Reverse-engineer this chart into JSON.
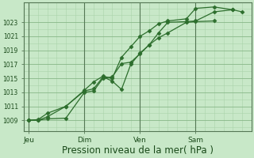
{
  "background_color": "#c8e8c8",
  "plot_bg_color": "#c8e8c8",
  "grid_major_color": "#88b888",
  "grid_minor_color": "#aad4aa",
  "line_color": "#2d6e2d",
  "xlabel": "Pression niveau de la mer( hPa )",
  "xlabel_fontsize": 8.5,
  "ylabel_labels": [
    1009,
    1011,
    1013,
    1015,
    1017,
    1019,
    1021,
    1023
  ],
  "ylim": [
    1007.5,
    1025.8
  ],
  "xtick_labels": [
    "Jeu",
    "Dim",
    "Ven",
    "Sam"
  ],
  "xtick_positions": [
    0,
    24,
    48,
    72
  ],
  "xlim": [
    -2,
    96
  ],
  "vlines": [
    0,
    24,
    48,
    72
  ],
  "series": [
    {
      "x": [
        0,
        4,
        8,
        16,
        24,
        28,
        32,
        36,
        40,
        44,
        48,
        52,
        56,
        60,
        68,
        72,
        80
      ],
      "y": [
        1009.0,
        1009.0,
        1009.2,
        1009.3,
        1013.0,
        1013.2,
        1015.0,
        1015.2,
        1017.1,
        1017.3,
        1018.5,
        1019.8,
        1020.8,
        1021.5,
        1023.0,
        1023.1,
        1023.2
      ]
    },
    {
      "x": [
        0,
        4,
        8,
        16,
        24,
        28,
        32,
        36,
        40,
        44,
        48,
        52,
        56,
        60,
        68,
        72,
        80,
        88
      ],
      "y": [
        1009.0,
        1009.1,
        1010.0,
        1011.0,
        1013.2,
        1013.5,
        1015.2,
        1014.6,
        1013.4,
        1017.0,
        1018.6,
        1019.8,
        1021.5,
        1023.0,
        1023.1,
        1023.2,
        1024.5,
        1024.8
      ]
    },
    {
      "x": [
        0,
        4,
        8,
        16,
        24,
        28,
        32,
        36,
        40,
        44,
        48,
        52,
        56,
        60,
        68,
        72,
        80,
        88,
        92
      ],
      "y": [
        1009.0,
        1009.0,
        1009.5,
        1011.0,
        1013.3,
        1014.5,
        1015.3,
        1015.0,
        1018.0,
        1019.5,
        1021.0,
        1021.8,
        1022.8,
        1023.2,
        1023.5,
        1025.0,
        1025.2,
        1024.8,
        1024.5
      ]
    }
  ]
}
